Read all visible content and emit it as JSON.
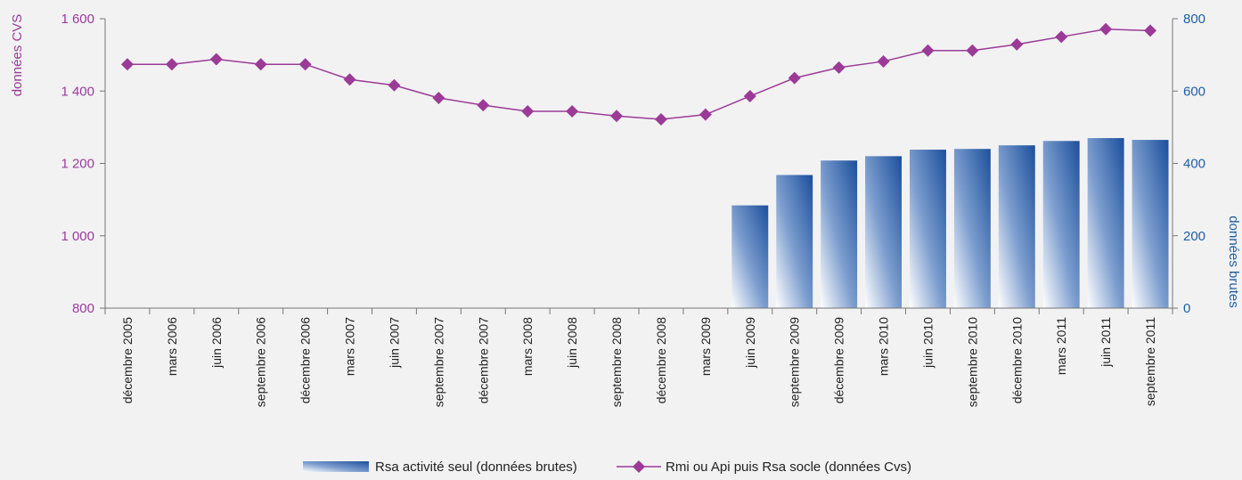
{
  "chart_data": {
    "type": "bar+line",
    "title": "",
    "categories": [
      "décembre 2005",
      "mars 2006",
      "juin 2006",
      "septembre 2006",
      "décembre 2006",
      "mars 2007",
      "juin 2007",
      "septembre 2007",
      "décembre 2007",
      "mars 2008",
      "juin 2008",
      "septembre 2008",
      "décembre 2008",
      "mars 2009",
      "juin 2009",
      "septembre 2009",
      "décembre 2009",
      "mars 2010",
      "juin 2010",
      "septembre 2010",
      "décembre 2010",
      "mars 2011",
      "juin 2011",
      "septembre 2011"
    ],
    "y_left": {
      "label": "données CVS",
      "range": [
        800,
        1600
      ],
      "ticks": [
        800,
        1000,
        1200,
        1400,
        1600
      ],
      "tick_labels": [
        "800",
        "1 000",
        "1 200",
        "1 400",
        "1 600"
      ]
    },
    "y_right": {
      "label": "données brutes",
      "range": [
        0,
        800
      ],
      "ticks": [
        0,
        200,
        400,
        600,
        800
      ],
      "tick_labels": [
        "0",
        "200",
        "400",
        "600",
        "800"
      ]
    },
    "series": [
      {
        "name": "Rsa activité seul (données brutes)",
        "type": "bar",
        "axis": "right",
        "color": "#1f5fa3",
        "values": [
          null,
          null,
          null,
          null,
          null,
          null,
          null,
          null,
          null,
          null,
          null,
          null,
          null,
          null,
          284,
          368,
          408,
          420,
          438,
          440,
          450,
          462,
          470,
          465
        ]
      },
      {
        "name": "Rmi ou Api puis Rsa socle (données Cvs)",
        "type": "line",
        "axis": "left",
        "color": "#9b3b97",
        "marker": "diamond",
        "values": [
          1474,
          1474,
          1488,
          1474,
          1474,
          1432,
          1416,
          1381,
          1361,
          1344,
          1344,
          1331,
          1322,
          1335,
          1386,
          1436,
          1465,
          1482,
          1512,
          1512,
          1529,
          1550,
          1571,
          1567
        ]
      }
    ],
    "grid": false,
    "legend": "bottom-center"
  }
}
